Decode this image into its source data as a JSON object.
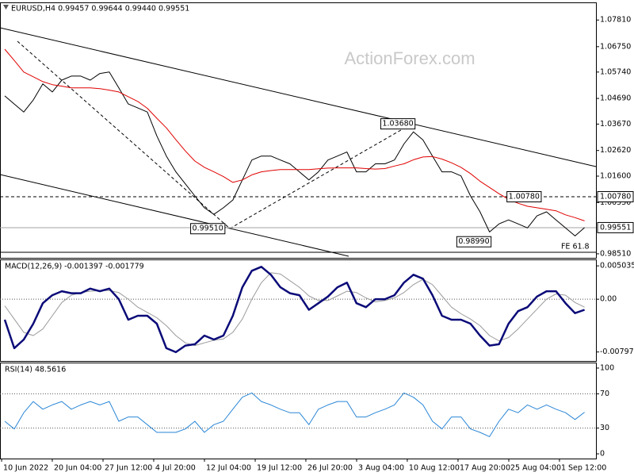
{
  "chart_data": [
    {
      "type": "line",
      "title": "EURUSD,H4  0.99457 0.99644 0.99440 0.99551",
      "watermark": "ActionForex.com",
      "x": [
        0,
        1,
        2,
        3,
        4,
        5,
        6,
        7,
        8,
        9,
        10,
        11,
        12,
        13,
        14,
        15,
        16,
        17,
        18,
        19,
        20,
        21,
        22,
        23,
        24,
        25,
        26,
        27,
        28,
        29,
        30,
        31,
        32,
        33,
        34,
        35,
        36,
        37,
        38,
        39,
        40,
        41,
        42,
        43,
        44,
        45,
        46,
        47,
        48,
        49,
        50,
        51,
        52,
        53,
        54,
        55,
        56,
        57,
        58,
        59,
        60,
        61
      ],
      "xlim": [
        -0.5,
        62.2
      ],
      "ylim": [
        0.9835,
        1.0848
      ],
      "yticks": [
        {
          "value": 1.0781,
          "label": "1.07810"
        },
        {
          "value": 1.0675,
          "label": "1.06750"
        },
        {
          "value": 1.0574,
          "label": "1.05740"
        },
        {
          "value": 1.0469,
          "label": "1.04690"
        },
        {
          "value": 1.0367,
          "label": "1.03670"
        },
        {
          "value": 1.0262,
          "label": "1.02620"
        },
        {
          "value": 1.016,
          "label": "1.01600"
        },
        {
          "value": 1.0055,
          "label": "1.00550"
        },
        {
          "value": 0.9851,
          "label": "0.98510"
        }
      ],
      "series": [
        {
          "color": "#000000",
          "values": [
            1.0479,
            1.0447,
            1.0415,
            1.0463,
            1.0527,
            1.0495,
            1.0542,
            1.0558,
            1.0558,
            1.0542,
            1.0568,
            1.0574,
            1.0511,
            1.0447,
            1.0431,
            1.0415,
            1.032,
            1.024,
            1.0177,
            1.0129,
            1.0081,
            1.0034,
            1.0008,
            1.0034,
            1.0065,
            1.0145,
            1.0224,
            1.024,
            1.024,
            1.0224,
            1.0209,
            1.0177,
            1.0145,
            1.0177,
            1.0224,
            1.024,
            1.0256,
            1.0177,
            1.0177,
            1.0209,
            1.0209,
            1.0224,
            1.0288,
            1.0336,
            1.0304,
            1.024,
            1.0177,
            1.0177,
            1.0161,
            1.0081,
            1.0018,
            0.9938,
            0.997,
            0.9986,
            0.997,
            0.9954,
            1.0002,
            1.0018,
            0.9986,
            0.9954,
            0.9922,
            0.99551
          ]
        },
        {
          "color": "#e00000",
          "values": [
            1.0665,
            1.062,
            1.0574,
            1.0555,
            1.0536,
            1.0524,
            1.0518,
            1.0511,
            1.0511,
            1.0511,
            1.0508,
            1.0502,
            1.0495,
            1.0476,
            1.0457,
            1.043,
            1.039,
            1.0352,
            1.0305,
            1.026,
            1.022,
            1.0195,
            1.0177,
            1.0158,
            1.0135,
            1.0145,
            1.0165,
            1.0177,
            1.0182,
            1.0186,
            1.0186,
            1.0186,
            1.0186,
            1.0189,
            1.0192,
            1.0193,
            1.0193,
            1.0193,
            1.019,
            1.0188,
            1.019,
            1.02,
            1.0209,
            1.0225,
            1.0236,
            1.0238,
            1.0228,
            1.0213,
            1.0195,
            1.017,
            1.014,
            1.0115,
            1.009,
            1.0068,
            1.0052,
            1.004,
            1.0034,
            1.0028,
            1.0022,
            1.0006,
            0.9995,
            0.9982
          ]
        }
      ],
      "levels": [
        {
          "value": 1.0078,
          "label": "1.00780",
          "style": "dashed"
        },
        {
          "value": 0.99551,
          "label": "0.99551",
          "style": "current"
        },
        {
          "value": 0.9857,
          "style": "solid"
        }
      ],
      "annotations": [
        {
          "x": 43,
          "y": 1.0368,
          "label": "1.03680"
        },
        {
          "x": 23,
          "y": 0.9951,
          "label": "0.99510"
        },
        {
          "x": 51,
          "y": 0.9899,
          "label": "0.98990"
        },
        {
          "x": 53,
          "y": 1.0078,
          "label": "1.00780"
        },
        {
          "x": 61.5,
          "y": 0.9857,
          "label": "FE 61.8"
        }
      ]
    },
    {
      "type": "line",
      "title": "MACD(12,26,9) -0.001397 -0.001779",
      "x": [
        0,
        1,
        2,
        3,
        4,
        5,
        6,
        7,
        8,
        9,
        10,
        11,
        12,
        13,
        14,
        15,
        16,
        17,
        18,
        19,
        20,
        21,
        22,
        23,
        24,
        25,
        26,
        27,
        28,
        29,
        30,
        31,
        32,
        33,
        34,
        35,
        36,
        37,
        38,
        39,
        40,
        41,
        42,
        43,
        44,
        45,
        46,
        47,
        48,
        49,
        50,
        51,
        52,
        53,
        54,
        55,
        56,
        57,
        58,
        59,
        60,
        61
      ],
      "xlim": [
        -0.5,
        62.2
      ],
      "ylim": [
        -0.00933,
        0.00589
      ],
      "yticks": [
        0.005035,
        {
          "value": 0,
          "label": "0.00"
        },
        -0.007973
      ],
      "series": [
        {
          "color": "#9a9a9a",
          "values": [
            -0.001,
            -0.003,
            -0.005,
            -0.0055,
            -0.0045,
            -0.0025,
            -0.0005,
            0.0006,
            0.001,
            0.0012,
            0.0013,
            0.0013,
            0.001,
            0,
            -0.0012,
            -0.002,
            -0.0028,
            -0.004,
            -0.0055,
            -0.0066,
            -0.007,
            -0.0066,
            -0.0062,
            -0.006,
            -0.005,
            -0.003,
            0,
            0.0025,
            0.004,
            0.0038,
            0.0028,
            0.0018,
            0.0005,
            -0.0002,
            -0.0002,
            0.0005,
            0.0012,
            0.001,
            0.0002,
            -0.0004,
            -0.0002,
            0.0002,
            0.001,
            0.0022,
            0.003,
            0.0022,
            0.0005,
            -0.0012,
            -0.0022,
            -0.003,
            -0.004,
            -0.0055,
            -0.0063,
            -0.0058,
            -0.0045,
            -0.003,
            -0.0015,
            0,
            0.0008,
            0.0006,
            -0.0005,
            -0.0012
          ]
        },
        {
          "color": "#0a0a78",
          "values": [
            -0.0031,
            -0.0074,
            -0.0061,
            -0.0037,
            -0.0006,
            0.0006,
            0.0012,
            0.0009,
            0.0009,
            0.0016,
            0.0012,
            0.0016,
            0,
            -0.0031,
            -0.0025,
            -0.0025,
            -0.0037,
            -0.0074,
            -0.008,
            -0.007,
            -0.0068,
            -0.0055,
            -0.0061,
            -0.0055,
            -0.0025,
            0.0018,
            0.0043,
            0.0049,
            0.0037,
            0.0018,
            0.0009,
            0.0006,
            -0.0016,
            -0.0006,
            0.0004,
            0.0018,
            0.0025,
            -0.0006,
            -0.0012,
            0,
            0,
            0.0006,
            0.0025,
            0.0037,
            0.0031,
            0.0006,
            -0.0025,
            -0.0031,
            -0.0031,
            -0.0037,
            -0.0055,
            -0.007,
            -0.0068,
            -0.0037,
            -0.0018,
            -0.0012,
            0.0004,
            0.0012,
            0.0012,
            -0.0006,
            -0.0021,
            -0.0016
          ]
        }
      ],
      "levels": [
        {
          "value": 0,
          "style": "dotted"
        }
      ]
    },
    {
      "type": "line",
      "title": "RSI(14) 48.5616",
      "x": [
        0,
        1,
        2,
        3,
        4,
        5,
        6,
        7,
        8,
        9,
        10,
        11,
        12,
        13,
        14,
        15,
        16,
        17,
        18,
        19,
        20,
        21,
        22,
        23,
        24,
        25,
        26,
        27,
        28,
        29,
        30,
        31,
        32,
        33,
        34,
        35,
        36,
        37,
        38,
        39,
        40,
        41,
        42,
        43,
        44,
        45,
        46,
        47,
        48,
        49,
        50,
        51,
        52,
        53,
        54,
        55,
        56,
        57,
        58,
        59,
        60,
        61
      ],
      "xlim": [
        -0.5,
        62.2
      ],
      "ylim": [
        -5.5,
        105.5
      ],
      "yticks": [
        100,
        70,
        30,
        0
      ],
      "xticks": [
        {
          "value": -0.33,
          "label": "10 Jun 2022"
        },
        {
          "value": 5.0,
          "label": "20 Jun 04:00"
        },
        {
          "value": 10.34,
          "label": "27 Jun 12:00"
        },
        {
          "value": 15.67,
          "label": "4 Jul 20:00"
        },
        {
          "value": 21.01,
          "label": "12 Jul 04:00"
        },
        {
          "value": 26.35,
          "label": "19 Jul 12:00"
        },
        {
          "value": 31.68,
          "label": "26 Jul 20:00"
        },
        {
          "value": 37.02,
          "label": "3 Aug 04:00"
        },
        {
          "value": 42.35,
          "label": "10 Aug 12:00"
        },
        {
          "value": 47.69,
          "label": "17 Aug 20:00"
        },
        {
          "value": 53.03,
          "label": "25 Aug 04:00"
        },
        {
          "value": 58.36,
          "label": "1 Sep 12:00"
        }
      ],
      "series": [
        {
          "color": "#2a86d6",
          "values": [
            38,
            29,
            48,
            61,
            52,
            57,
            61,
            52,
            57,
            61,
            57,
            61,
            38,
            43,
            43,
            34,
            25,
            25,
            25,
            29,
            38,
            25,
            34,
            38,
            52,
            66,
            71,
            61,
            57,
            52,
            48,
            48,
            34,
            52,
            57,
            61,
            61,
            43,
            43,
            48,
            52,
            57,
            71,
            66,
            57,
            38,
            29,
            43,
            43,
            29,
            25,
            20,
            38,
            52,
            48,
            57,
            52,
            57,
            52,
            48,
            40,
            48.5616
          ]
        }
      ],
      "levels": [
        {
          "value": 70,
          "style": "dotted"
        },
        {
          "value": 30,
          "style": "dotted"
        }
      ]
    }
  ]
}
